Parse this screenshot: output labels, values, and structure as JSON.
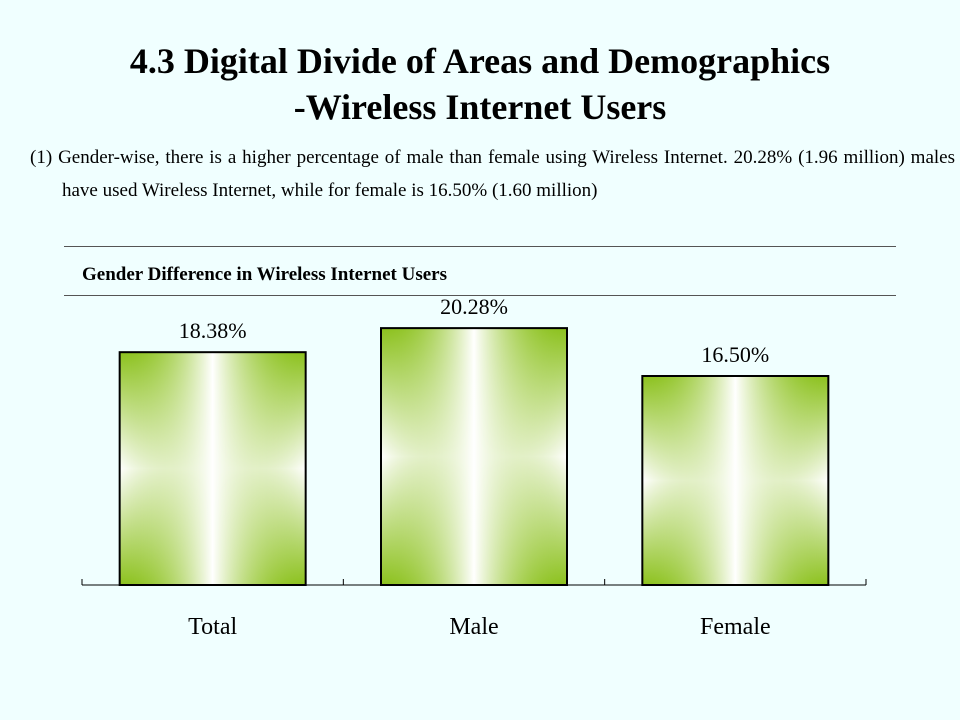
{
  "slide": {
    "title_line1": "4.3 Digital Divide of Areas and Demographics",
    "title_line2": "-Wireless Internet Users",
    "paragraph_marker": "(1)",
    "paragraph": "Gender-wise, there is a higher percentage of male than female using Wireless Internet. 20.28% (1.96 million) males have used Wireless Internet, while for female is 16.50% (1.60 million)"
  },
  "chart_data": {
    "type": "bar",
    "title": "Gender Difference in Wireless Internet Users",
    "categories": [
      "Total",
      "Male",
      "Female"
    ],
    "values": [
      18.38,
      20.28,
      16.5
    ],
    "data_labels": [
      "18.38%",
      "20.28%",
      "16.50%"
    ],
    "xlabel": "",
    "ylabel": "",
    "ylim": [
      0,
      22.5
    ],
    "grid": false,
    "legend": "none",
    "colors": {
      "bar_edge": "#8DC21F",
      "bar_center": "#FFFFFF",
      "bar_border": "#000000"
    }
  }
}
